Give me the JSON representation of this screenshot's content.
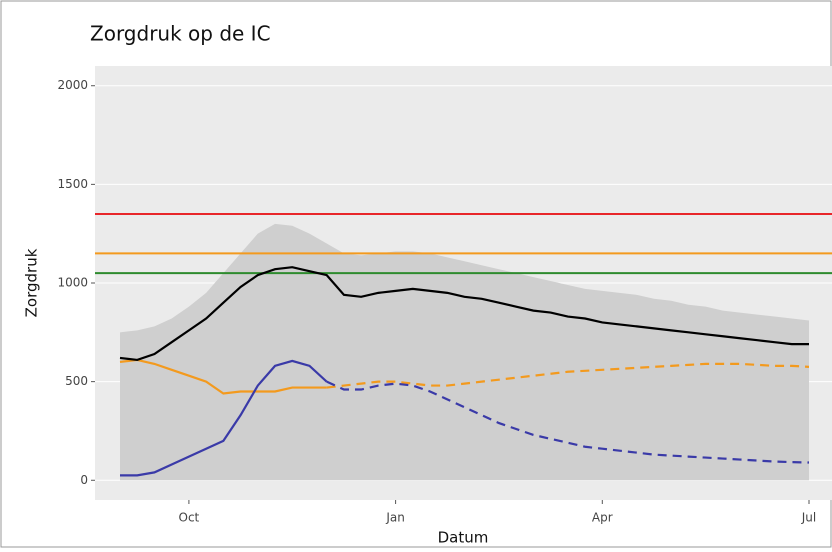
{
  "chart_data": {
    "type": "line",
    "title": "Zorgdruk op de IC",
    "ylabel": "Zorgdruk",
    "xlabel": "Datum",
    "categories": [
      null,
      null,
      null,
      null,
      "Oct",
      null,
      null,
      null,
      null,
      null,
      null,
      null,
      null,
      null,
      null,
      null,
      "Jan",
      null,
      null,
      null,
      null,
      null,
      null,
      null,
      null,
      null,
      null,
      null,
      "Apr",
      null,
      null,
      null,
      null,
      null,
      null,
      null,
      null,
      null,
      null,
      null,
      "Jul"
    ],
    "ylim": [
      -100,
      2100
    ],
    "yticks": [
      0,
      500,
      1000,
      1500,
      2000
    ],
    "grid": true,
    "hlines": [
      {
        "value": 1350,
        "color": "#e8262a"
      },
      {
        "value": 1150,
        "color": "#f39a1e"
      },
      {
        "value": 1050,
        "color": "#2e8b2e"
      }
    ],
    "series": [
      {
        "color": "#cfcfcf",
        "fill": true,
        "values": [
          750,
          760,
          780,
          820,
          880,
          950,
          1050,
          1150,
          1250,
          1300,
          1290,
          1250,
          1200,
          1150,
          1140,
          1150,
          1160,
          1160,
          1150,
          1130,
          1110,
          1090,
          1070,
          1050,
          1030,
          1010,
          990,
          970,
          960,
          950,
          940,
          920,
          910,
          890,
          880,
          860,
          850,
          840,
          830,
          820,
          810
        ]
      },
      {
        "color": "#f39a1e",
        "style": "solid",
        "values": [
          600,
          610,
          590,
          560,
          530,
          500,
          440,
          450,
          450,
          450,
          470,
          470,
          470,
          null,
          null,
          null,
          null,
          null,
          null,
          null,
          null,
          null,
          null,
          null,
          null,
          null,
          null,
          null,
          null,
          null,
          null,
          null,
          null,
          null,
          null,
          null,
          null,
          null,
          null,
          null,
          null
        ]
      },
      {
        "color": "#f39a1e",
        "style": "dashed",
        "values": [
          null,
          null,
          null,
          null,
          null,
          null,
          null,
          null,
          null,
          null,
          null,
          null,
          470,
          480,
          490,
          500,
          500,
          490,
          480,
          480,
          490,
          500,
          510,
          520,
          530,
          540,
          550,
          555,
          560,
          565,
          570,
          575,
          580,
          585,
          590,
          590,
          590,
          585,
          580,
          580,
          575
        ]
      },
      {
        "color": "#3a3aa8",
        "style": "solid",
        "values": [
          25,
          25,
          40,
          80,
          120,
          160,
          200,
          330,
          480,
          580,
          605,
          580,
          500,
          null,
          null,
          null,
          null,
          null,
          null,
          null,
          null,
          null,
          null,
          null,
          null,
          null,
          null,
          null,
          null,
          null,
          null,
          null,
          null,
          null,
          null,
          null,
          null,
          null,
          null,
          null,
          null
        ]
      },
      {
        "color": "#3a3aa8",
        "style": "dashed",
        "values": [
          null,
          null,
          null,
          null,
          null,
          null,
          null,
          null,
          null,
          null,
          null,
          null,
          500,
          460,
          460,
          480,
          490,
          480,
          450,
          410,
          370,
          330,
          290,
          260,
          230,
          210,
          190,
          170,
          160,
          150,
          140,
          130,
          125,
          120,
          115,
          110,
          105,
          100,
          95,
          92,
          90
        ]
      },
      {
        "color": "#000000",
        "style": "solid",
        "values": [
          620,
          610,
          640,
          700,
          760,
          820,
          900,
          980,
          1040,
          1070,
          1080,
          1060,
          1040,
          940,
          930,
          950,
          960,
          970,
          960,
          950,
          930,
          920,
          900,
          880,
          860,
          850,
          830,
          820,
          800,
          790,
          780,
          770,
          760,
          750,
          740,
          730,
          720,
          710,
          700,
          690,
          690
        ]
      }
    ]
  }
}
